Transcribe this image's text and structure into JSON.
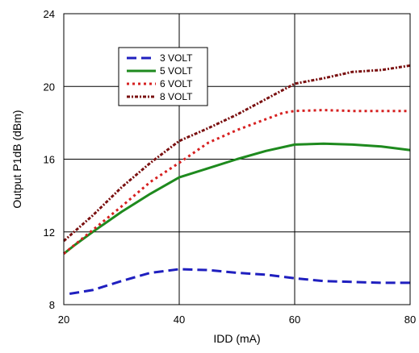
{
  "chart_data": {
    "type": "line",
    "title": "",
    "xlabel": "IDD (mA)",
    "ylabel": "Output P1dB (dBm)",
    "xlim": [
      20,
      80
    ],
    "ylim": [
      8,
      24
    ],
    "xticks": [
      20,
      40,
      60,
      80
    ],
    "yticks": [
      8,
      12,
      16,
      20,
      24
    ],
    "grid": true,
    "legend": "top-left",
    "series": [
      {
        "name": "3 VOLT",
        "color": "#1f1fbf",
        "style": "dashed",
        "x": [
          21,
          25,
          30,
          35,
          40,
          45,
          50,
          55,
          60,
          65,
          70,
          75,
          80
        ],
        "y": [
          8.6,
          8.8,
          9.3,
          9.75,
          9.95,
          9.9,
          9.75,
          9.65,
          9.45,
          9.3,
          9.25,
          9.2,
          9.2
        ]
      },
      {
        "name": "5 VOLT",
        "color": "#1e8a1e",
        "style": "solid",
        "x": [
          20,
          22,
          25,
          30,
          35,
          40,
          45,
          50,
          55,
          60,
          65,
          70,
          75,
          80
        ],
        "y": [
          10.8,
          11.3,
          12.0,
          13.1,
          14.1,
          15.0,
          15.5,
          16.0,
          16.45,
          16.8,
          16.85,
          16.8,
          16.7,
          16.5
        ]
      },
      {
        "name": "6 VOLT",
        "color": "#d62020",
        "style": "dotted",
        "x": [
          20,
          25,
          30,
          35,
          40,
          45,
          50,
          55,
          58,
          60,
          65,
          70,
          75,
          80
        ],
        "y": [
          10.8,
          12.1,
          13.4,
          14.75,
          15.8,
          16.9,
          17.6,
          18.2,
          18.55,
          18.65,
          18.7,
          18.65,
          18.65,
          18.65
        ]
      },
      {
        "name": "8 VOLT",
        "color": "#7a1010",
        "style": "dashdot",
        "x": [
          20,
          25,
          30,
          35,
          40,
          45,
          50,
          55,
          60,
          65,
          70,
          75,
          80
        ],
        "y": [
          11.5,
          12.9,
          14.45,
          15.8,
          17.0,
          17.7,
          18.45,
          19.3,
          20.15,
          20.45,
          20.8,
          20.9,
          21.15
        ]
      }
    ]
  }
}
